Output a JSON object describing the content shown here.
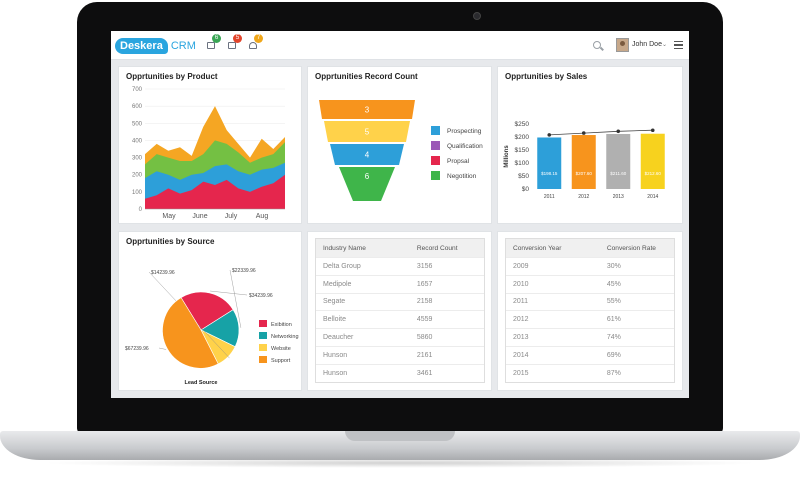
{
  "header": {
    "logo_brand": "Deskera",
    "logo_product": "CRM",
    "notifications": [
      {
        "icon": "list-icon",
        "count": "6",
        "color": "#3aa655"
      },
      {
        "icon": "mail-icon",
        "count": "5",
        "color": "#e2452c"
      },
      {
        "icon": "bell-icon",
        "count": "7",
        "color": "#f0a71a"
      }
    ],
    "user_name": "John Doe",
    "caret": "⌄"
  },
  "panels": {
    "product": {
      "title": "Opprtunities by Product"
    },
    "record_count": {
      "title": "Opprtunities Record Count"
    },
    "sales": {
      "title": "Opprtunities by Sales"
    },
    "source": {
      "title": "Opprtunities by Source"
    }
  },
  "chart_data": [
    {
      "type": "area",
      "title": "Opprtunities by Product",
      "categories": [
        "May",
        "June",
        "July",
        "Aug"
      ],
      "ylim": [
        0,
        700
      ],
      "y_ticks": [
        "0",
        "100",
        "200",
        "300",
        "400",
        "500",
        "600",
        "700"
      ],
      "x": [
        0,
        1,
        2,
        3,
        4,
        5,
        6,
        7,
        8,
        9,
        10,
        11,
        12
      ],
      "series": [
        {
          "color": "#f5a623",
          "values": [
            320,
            380,
            340,
            360,
            310,
            480,
            600,
            460,
            380,
            300,
            410,
            350,
            420
          ]
        },
        {
          "color": "#74c043",
          "values": [
            260,
            320,
            300,
            280,
            280,
            320,
            400,
            380,
            330,
            270,
            300,
            320,
            390
          ]
        },
        {
          "color": "#2d9fd9",
          "values": [
            180,
            220,
            200,
            170,
            200,
            210,
            250,
            260,
            220,
            200,
            230,
            240,
            270
          ]
        },
        {
          "color": "#e5264d",
          "values": [
            60,
            80,
            120,
            90,
            110,
            160,
            140,
            170,
            120,
            100,
            130,
            150,
            200
          ]
        }
      ]
    },
    {
      "type": "funnel",
      "title": "Opprtunities Record Count",
      "stages": [
        {
          "label": "Prospecting",
          "value": "3",
          "color": "#f7941d"
        },
        {
          "label": "Qualification",
          "value": "5",
          "color": "#ffd24a"
        },
        {
          "label": "Propsal",
          "value": "4",
          "color": "#2d9fd9"
        },
        {
          "label": "Negotition",
          "value": "6",
          "color": "#3fb54a"
        }
      ],
      "legend_colors": [
        "#2d9fd9",
        "#9b59b6",
        "#e5264d",
        "#3fb54a"
      ]
    },
    {
      "type": "bar",
      "title": "Opprtunities by Sales",
      "ylabel": "Millions",
      "ylim": [
        0,
        250
      ],
      "y_ticks": [
        "$0",
        "$50",
        "$100",
        "$150",
        "$200",
        "$250"
      ],
      "categories": [
        "2011",
        "2012",
        "2013",
        "2014"
      ],
      "values": [
        198.15,
        207.6,
        211.6,
        212.6
      ],
      "bar_labels": [
        "$198.15",
        "$207.60",
        "$211.60",
        "$212.60"
      ],
      "colors": [
        "#2d9fd9",
        "#f7941d",
        "#b0b0b0",
        "#f7d21e"
      ],
      "line_values": [
        208,
        215,
        222,
        226
      ]
    },
    {
      "type": "pie",
      "title": "Opprtunities by Source",
      "xlabel": "Lead Source",
      "slices": [
        {
          "label": "Exibition",
          "value": 34239.96,
          "text": "$34239.96",
          "color": "#e5264d"
        },
        {
          "label": "Networking",
          "value": 22339.96,
          "text": "$22339.96",
          "color": "#17a2a6"
        },
        {
          "label": "Website",
          "value": 14239.96,
          "text": "$14239.96",
          "color": "#ffd24a"
        },
        {
          "label": "Support",
          "value": 67239.96,
          "text": "$67239.96",
          "color": "#f7941d"
        }
      ],
      "legend_placement": "right"
    }
  ],
  "tables": {
    "industry": {
      "headers": [
        "Industry Name",
        "Record Count"
      ],
      "rows": [
        [
          "Delta Group",
          "3156"
        ],
        [
          "Medipole",
          "1657"
        ],
        [
          "Segate",
          "2158"
        ],
        [
          "Belloite",
          "4559"
        ],
        [
          "Deaucher",
          "5860"
        ],
        [
          "Hunson",
          "2161"
        ],
        [
          "Hunson",
          "3461"
        ]
      ]
    },
    "conversion": {
      "headers": [
        "Conversion Year",
        "Conversion Rate"
      ],
      "rows": [
        [
          "2009",
          "30%"
        ],
        [
          "2010",
          "45%"
        ],
        [
          "2011",
          "55%"
        ],
        [
          "2012",
          "61%"
        ],
        [
          "2013",
          "74%"
        ],
        [
          "2014",
          "69%"
        ],
        [
          "2015",
          "87%"
        ]
      ]
    }
  }
}
